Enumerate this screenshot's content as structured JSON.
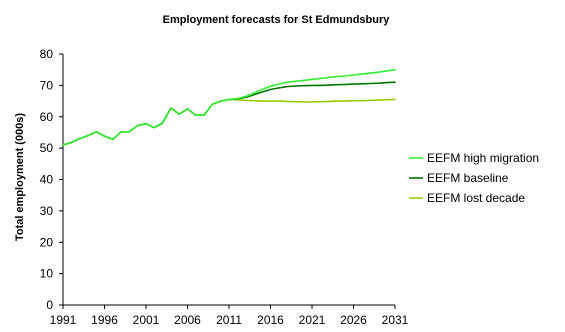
{
  "chart_data": {
    "type": "line",
    "title": "Employment forecasts for St Edmundsbury",
    "xlabel": "",
    "ylabel": "Total employment (000s)",
    "xlim": [
      1991,
      2031
    ],
    "ylim": [
      0,
      80
    ],
    "x_ticks": [
      "1991",
      "1996",
      "2001",
      "2006",
      "2011",
      "2016",
      "2021",
      "2026",
      "2031"
    ],
    "y_ticks": [
      "0",
      "10",
      "20",
      "30",
      "40",
      "50",
      "60",
      "70",
      "80"
    ],
    "grid": false,
    "legend": "right",
    "x": [
      1991,
      1992,
      1993,
      1994,
      1995,
      1996,
      1997,
      1998,
      1999,
      2000,
      2001,
      2002,
      2003,
      2004,
      2005,
      2006,
      2007,
      2008,
      2009,
      2010,
      2011,
      2012,
      2013,
      2014,
      2015,
      2016,
      2017,
      2018,
      2019,
      2020,
      2021,
      2022,
      2023,
      2024,
      2025,
      2026,
      2027,
      2028,
      2029,
      2030,
      2031
    ],
    "series": [
      {
        "name": "EEFM high migration",
        "color": "#33ee33",
        "values": [
          51.0,
          51.8,
          53.0,
          54.0,
          55.2,
          53.8,
          52.8,
          55.2,
          55.2,
          57.2,
          57.8,
          56.5,
          58.0,
          62.8,
          60.8,
          62.5,
          60.5,
          60.5,
          64.0,
          65.0,
          65.5,
          65.8,
          66.5,
          67.5,
          68.7,
          69.7,
          70.4,
          71.0,
          71.3,
          71.6,
          71.9,
          72.2,
          72.5,
          72.8,
          73.0,
          73.3,
          73.6,
          73.9,
          74.2,
          74.6,
          75.0
        ]
      },
      {
        "name": "EEFM baseline",
        "color": "#007700",
        "values": [
          51.0,
          51.8,
          53.0,
          54.0,
          55.2,
          53.8,
          52.8,
          55.2,
          55.2,
          57.2,
          57.8,
          56.5,
          58.0,
          62.8,
          60.8,
          62.5,
          60.5,
          60.5,
          64.0,
          65.0,
          65.5,
          65.7,
          66.2,
          67.0,
          67.9,
          68.7,
          69.2,
          69.6,
          69.8,
          69.9,
          70.0,
          70.0,
          70.1,
          70.2,
          70.3,
          70.4,
          70.5,
          70.6,
          70.7,
          70.9,
          71.0
        ]
      },
      {
        "name": "EEFM lost decade",
        "color": "#99cc00",
        "values": [
          51.0,
          51.8,
          53.0,
          54.0,
          55.2,
          53.8,
          52.8,
          55.2,
          55.2,
          57.2,
          57.8,
          56.5,
          58.0,
          62.8,
          60.8,
          62.5,
          60.5,
          60.5,
          64.0,
          65.0,
          65.5,
          65.4,
          65.2,
          65.1,
          65.0,
          65.0,
          65.0,
          64.9,
          64.8,
          64.7,
          64.7,
          64.8,
          64.9,
          65.0,
          65.0,
          65.1,
          65.1,
          65.2,
          65.3,
          65.4,
          65.5
        ]
      }
    ]
  }
}
